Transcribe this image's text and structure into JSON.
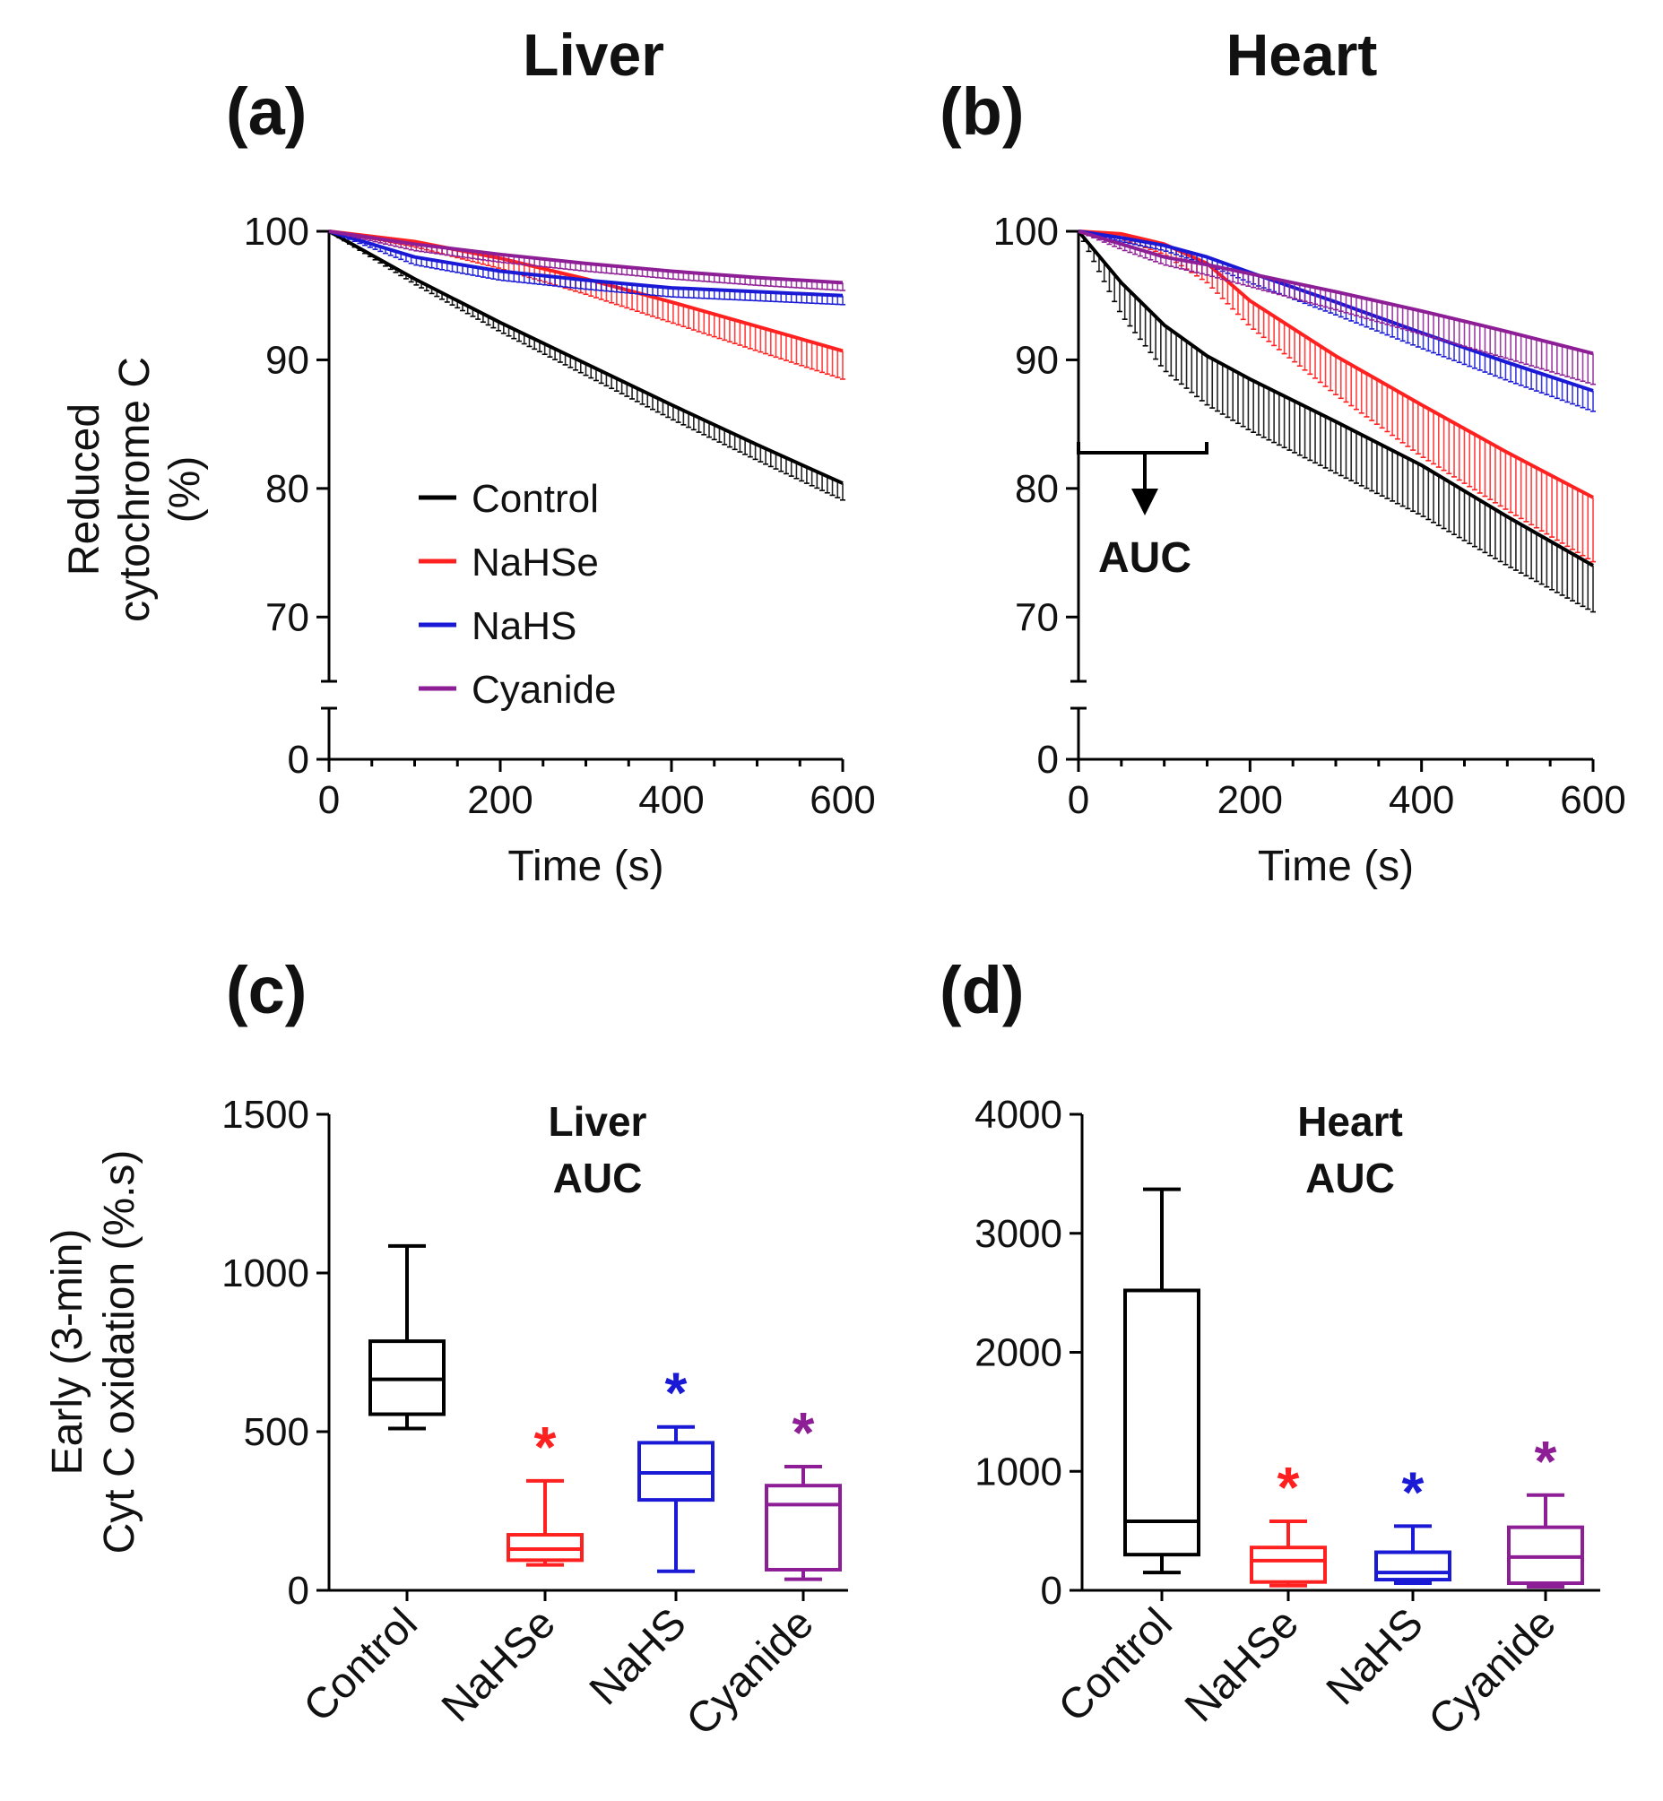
{
  "figure": {
    "headers": {
      "liver": "Liver",
      "heart": "Heart"
    },
    "panel_tags": {
      "a": "(a)",
      "b": "(b)",
      "c": "(c)",
      "d": "(d)"
    },
    "legend": [
      {
        "label": "Control",
        "color": "#000000"
      },
      {
        "label": "NaHSe",
        "color": "#ff2020"
      },
      {
        "label": "NaHS",
        "color": "#1a1ad6"
      },
      {
        "label": "Cyanide",
        "color": "#8e1e96"
      }
    ],
    "top_ylabel": [
      "Reduced",
      "cytochrome C",
      "(%)"
    ],
    "bottom_ylabel": [
      "Early (3-min)",
      "Cyt C oxidation (%.s)"
    ],
    "auc_annotation": "AUC",
    "significance_mark": "*"
  },
  "chart_data": [
    {
      "id": "a",
      "type": "line",
      "title": "Liver",
      "xlabel": "Time (s)",
      "ylabel": "Reduced cytochrome C (%)",
      "xlim": [
        0,
        600
      ],
      "xticks": [
        0,
        200,
        400,
        600
      ],
      "yticks": [
        0,
        70,
        80,
        90,
        100
      ],
      "ylim_main": [
        65,
        100
      ],
      "axis_break": true,
      "x": [
        0,
        100,
        200,
        300,
        400,
        500,
        600
      ],
      "series": [
        {
          "name": "Control",
          "color": "#000000",
          "values": [
            100,
            96.3,
            92.9,
            89.7,
            86.5,
            83.4,
            80.4
          ],
          "err": [
            0,
            0.4,
            0.7,
            0.9,
            1.1,
            1.2,
            1.3
          ]
        },
        {
          "name": "NaHSe",
          "color": "#ff2020",
          "values": [
            100,
            99.2,
            97.9,
            96.3,
            94.5,
            92.6,
            90.7
          ],
          "err": [
            0,
            0.4,
            0.8,
            1.2,
            1.6,
            1.9,
            2.2
          ]
        },
        {
          "name": "NaHS",
          "color": "#1a1ad6",
          "values": [
            100,
            98.0,
            96.9,
            96.2,
            95.6,
            95.3,
            95.0
          ],
          "err": [
            0,
            0.6,
            0.7,
            0.7,
            0.7,
            0.7,
            0.7
          ]
        },
        {
          "name": "Cyanide",
          "color": "#8e1e96",
          "values": [
            100,
            99.0,
            98.2,
            97.5,
            96.9,
            96.4,
            96.0
          ],
          "err": [
            0,
            0.5,
            0.6,
            0.6,
            0.6,
            0.6,
            0.6
          ]
        }
      ]
    },
    {
      "id": "b",
      "type": "line",
      "title": "Heart",
      "xlabel": "Time (s)",
      "ylabel": "Reduced cytochrome C (%)",
      "xlim": [
        0,
        600
      ],
      "xticks": [
        0,
        200,
        400,
        600
      ],
      "yticks": [
        0,
        70,
        80,
        90,
        100
      ],
      "ylim_main": [
        65,
        100
      ],
      "axis_break": true,
      "x": [
        0,
        50,
        100,
        150,
        200,
        300,
        400,
        500,
        600
      ],
      "series": [
        {
          "name": "Control",
          "color": "#000000",
          "values": [
            100,
            96.0,
            92.7,
            90.3,
            88.5,
            85.2,
            81.8,
            77.8,
            74.0
          ],
          "err": [
            0,
            2.5,
            3.5,
            3.8,
            4.0,
            4.0,
            3.9,
            3.8,
            3.6
          ]
        },
        {
          "name": "NaHSe",
          "color": "#ff2020",
          "values": [
            100,
            99.8,
            99.0,
            97.5,
            94.6,
            90.3,
            86.5,
            82.8,
            79.3
          ],
          "err": [
            0,
            0.4,
            0.8,
            1.5,
            2.0,
            3.0,
            4.0,
            4.5,
            5.0
          ]
        },
        {
          "name": "NaHS",
          "color": "#1a1ad6",
          "values": [
            100,
            99.5,
            98.9,
            98.0,
            96.8,
            94.5,
            92.1,
            89.8,
            87.6
          ],
          "err": [
            0,
            0.3,
            0.4,
            0.6,
            0.8,
            1.0,
            1.2,
            1.4,
            1.6
          ]
        },
        {
          "name": "Cyanide",
          "color": "#8e1e96",
          "values": [
            100,
            99.0,
            98.0,
            97.4,
            96.7,
            95.3,
            93.8,
            92.2,
            90.5
          ],
          "err": [
            0,
            0.4,
            0.6,
            0.8,
            1.0,
            1.4,
            1.8,
            2.1,
            2.4
          ]
        }
      ]
    },
    {
      "id": "c",
      "type": "box",
      "title": "Liver AUC",
      "title_lines": [
        "Liver",
        "AUC"
      ],
      "ylabel": "Early (3-min) Cyt C oxidation (%.s)",
      "ylim": [
        0,
        1500
      ],
      "yticks": [
        0,
        500,
        1000,
        1500
      ],
      "categories": [
        "Control",
        "NaHSe",
        "NaHS",
        "Cyanide"
      ],
      "boxes": [
        {
          "category": "Control",
          "color": "#000000",
          "min": 510,
          "q1": 555,
          "median": 665,
          "q3": 785,
          "max": 1085,
          "significant": false
        },
        {
          "category": "NaHSe",
          "color": "#ff2020",
          "min": 80,
          "q1": 95,
          "median": 130,
          "q3": 175,
          "max": 345,
          "significant": true
        },
        {
          "category": "NaHS",
          "color": "#1a1ad6",
          "min": 60,
          "q1": 285,
          "median": 370,
          "q3": 465,
          "max": 515,
          "significant": true
        },
        {
          "category": "Cyanide",
          "color": "#8e1e96",
          "min": 35,
          "q1": 65,
          "median": 270,
          "q3": 330,
          "max": 390,
          "significant": true
        }
      ]
    },
    {
      "id": "d",
      "type": "box",
      "title": "Heart AUC",
      "title_lines": [
        "Heart",
        "AUC"
      ],
      "ylabel": "Early (3-min) Cyt C oxidation (%.s)",
      "ylim": [
        0,
        4000
      ],
      "yticks": [
        0,
        1000,
        2000,
        3000,
        4000
      ],
      "categories": [
        "Control",
        "NaHSe",
        "NaHS",
        "Cyanide"
      ],
      "boxes": [
        {
          "category": "Control",
          "color": "#000000",
          "min": 150,
          "q1": 300,
          "median": 580,
          "q3": 2520,
          "max": 3370,
          "significant": false
        },
        {
          "category": "NaHSe",
          "color": "#ff2020",
          "min": 40,
          "q1": 70,
          "median": 250,
          "q3": 360,
          "max": 580,
          "significant": true
        },
        {
          "category": "NaHS",
          "color": "#1a1ad6",
          "min": 60,
          "q1": 90,
          "median": 150,
          "q3": 320,
          "max": 540,
          "significant": true
        },
        {
          "category": "Cyanide",
          "color": "#8e1e96",
          "min": 30,
          "q1": 60,
          "median": 280,
          "q3": 530,
          "max": 800,
          "significant": true
        }
      ]
    }
  ]
}
